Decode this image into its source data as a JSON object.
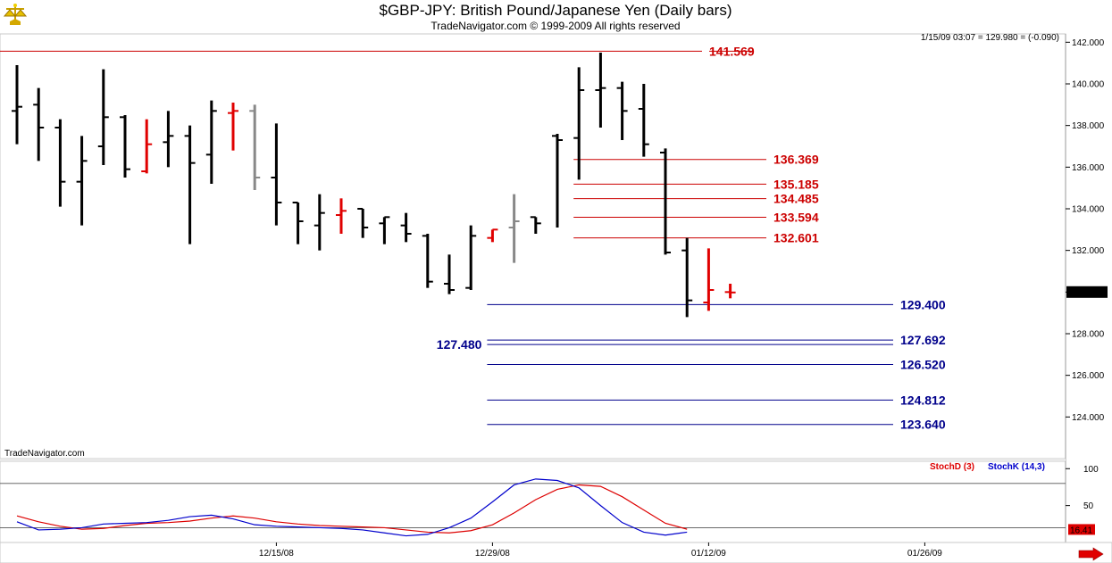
{
  "header": {
    "title": "$GBP-JPY:  British Pound/Japanese Yen  (Daily bars)",
    "subtitle": "TradeNavigator.com © 1999-2009 All rights reserved",
    "readout": "1/15/09 03:07 = 129.980 = (-0.090)",
    "watermark": "TradeNavigator.com",
    "logo_icon": "scales-icon",
    "scroll_icon": "arrow-right-icon"
  },
  "colors": {
    "up_bar": "#000000",
    "down_bar": "#000000",
    "red_bar": "#e00000",
    "gray_bar": "#888888",
    "resistance": "#cc0000",
    "support": "#00008b",
    "stoch_d": "#dd0000",
    "stoch_k": "#0000cc"
  },
  "chart_data": [
    {
      "type": "ohlc",
      "title": "$GBP-JPY:  British Pound/Japanese Yen  (Daily bars)",
      "ylim": [
        122.0,
        142.4
      ],
      "yticks": [
        "142.000",
        "140.000",
        "138.000",
        "136.000",
        "134.000",
        "132.000",
        "130.000",
        "128.000",
        "126.000",
        "124.000"
      ],
      "xticks": [
        {
          "label": "12/15/08",
          "index": 12
        },
        {
          "label": "12/29/08",
          "index": 22
        },
        {
          "label": "01/12/09",
          "index": 32
        },
        {
          "label": "01/26/09",
          "index": 42
        }
      ],
      "current_price": "129.980",
      "bars": [
        {
          "o": 138.7,
          "h": 140.9,
          "l": 137.1,
          "c": 138.9,
          "color": "black"
        },
        {
          "o": 139.0,
          "h": 139.8,
          "l": 136.3,
          "c": 137.9,
          "color": "black"
        },
        {
          "o": 137.9,
          "h": 138.3,
          "l": 134.1,
          "c": 135.3,
          "color": "black"
        },
        {
          "o": 135.3,
          "h": 137.5,
          "l": 133.2,
          "c": 136.3,
          "color": "black"
        },
        {
          "o": 137.0,
          "h": 140.7,
          "l": 136.1,
          "c": 138.4,
          "color": "black"
        },
        {
          "o": 138.4,
          "h": 138.5,
          "l": 135.5,
          "c": 135.9,
          "color": "black"
        },
        {
          "o": 135.8,
          "h": 138.3,
          "l": 135.7,
          "c": 137.1,
          "color": "red"
        },
        {
          "o": 137.2,
          "h": 138.7,
          "l": 136.0,
          "c": 137.5,
          "color": "black"
        },
        {
          "o": 137.5,
          "h": 138.0,
          "l": 132.3,
          "c": 136.2,
          "color": "black"
        },
        {
          "o": 136.6,
          "h": 139.2,
          "l": 135.2,
          "c": 138.7,
          "color": "black"
        },
        {
          "o": 138.6,
          "h": 139.1,
          "l": 136.8,
          "c": 138.7,
          "color": "red"
        },
        {
          "o": 138.7,
          "h": 139.0,
          "l": 134.9,
          "c": 135.5,
          "color": "gray"
        },
        {
          "o": 135.5,
          "h": 138.1,
          "l": 133.2,
          "c": 134.3,
          "color": "black"
        },
        {
          "o": 134.3,
          "h": 134.3,
          "l": 132.3,
          "c": 133.4,
          "color": "black"
        },
        {
          "o": 133.2,
          "h": 134.7,
          "l": 132.0,
          "c": 133.8,
          "color": "black"
        },
        {
          "o": 133.7,
          "h": 134.5,
          "l": 132.8,
          "c": 133.9,
          "color": "red"
        },
        {
          "o": 134.0,
          "h": 134.0,
          "l": 132.6,
          "c": 133.1,
          "color": "black"
        },
        {
          "o": 133.3,
          "h": 133.6,
          "l": 132.3,
          "c": 133.6,
          "color": "black"
        },
        {
          "o": 133.2,
          "h": 133.8,
          "l": 132.4,
          "c": 132.8,
          "color": "black"
        },
        {
          "o": 132.7,
          "h": 132.8,
          "l": 130.2,
          "c": 130.5,
          "color": "black"
        },
        {
          "o": 130.4,
          "h": 131.8,
          "l": 129.9,
          "c": 130.1,
          "color": "black"
        },
        {
          "o": 130.2,
          "h": 133.2,
          "l": 130.1,
          "c": 132.7,
          "color": "black"
        },
        {
          "o": 132.6,
          "h": 133.0,
          "l": 132.4,
          "c": 133.0,
          "color": "red"
        },
        {
          "o": 133.1,
          "h": 134.7,
          "l": 131.4,
          "c": 133.4,
          "color": "gray"
        },
        {
          "o": 133.6,
          "h": 133.6,
          "l": 132.8,
          "c": 133.3,
          "color": "black"
        },
        {
          "o": 137.5,
          "h": 137.6,
          "l": 133.1,
          "c": 137.3,
          "color": "black"
        },
        {
          "o": 137.4,
          "h": 140.8,
          "l": 135.4,
          "c": 139.7,
          "color": "black"
        },
        {
          "o": 139.7,
          "h": 141.5,
          "l": 137.9,
          "c": 139.8,
          "color": "black"
        },
        {
          "o": 139.8,
          "h": 140.1,
          "l": 137.3,
          "c": 138.7,
          "color": "black"
        },
        {
          "o": 138.8,
          "h": 140.0,
          "l": 136.5,
          "c": 137.1,
          "color": "black"
        },
        {
          "o": 136.7,
          "h": 136.9,
          "l": 131.8,
          "c": 131.9,
          "color": "black"
        },
        {
          "o": 132.0,
          "h": 132.6,
          "l": 128.8,
          "c": 129.6,
          "color": "black"
        },
        {
          "o": 129.5,
          "h": 132.1,
          "l": 129.1,
          "c": 130.1,
          "color": "red"
        },
        {
          "o": 130.0,
          "h": 130.4,
          "l": 129.7,
          "c": 129.98,
          "color": "red"
        }
      ],
      "levels": [
        {
          "value": 141.569,
          "label": "141.569",
          "color": "red",
          "x_from": 0,
          "label_side": "right",
          "strike": true
        },
        {
          "value": 136.369,
          "label": "136.369",
          "color": "red",
          "x_from": 26,
          "label_side": "right"
        },
        {
          "value": 135.185,
          "label": "135.185",
          "color": "red",
          "x_from": 26,
          "label_side": "right"
        },
        {
          "value": 134.485,
          "label": "134.485",
          "color": "red",
          "x_from": 26,
          "label_side": "right"
        },
        {
          "value": 133.594,
          "label": "133.594",
          "color": "red",
          "x_from": 26,
          "label_side": "right"
        },
        {
          "value": 132.601,
          "label": "132.601",
          "color": "red",
          "x_from": 26,
          "label_side": "right"
        },
        {
          "value": 129.4,
          "label": "129.400",
          "color": "blue",
          "x_from": 22,
          "label_side": "right",
          "long": true
        },
        {
          "value": 127.692,
          "label": "127.692",
          "color": "blue",
          "x_from": 22,
          "label_side": "right"
        },
        {
          "value": 127.48,
          "label": "127.480",
          "color": "blue",
          "x_from": 22,
          "label_side": "left"
        },
        {
          "value": 126.52,
          "label": "126.520",
          "color": "blue",
          "x_from": 22,
          "label_side": "right"
        },
        {
          "value": 124.812,
          "label": "124.812",
          "color": "blue",
          "x_from": 22,
          "label_side": "right"
        },
        {
          "value": 123.64,
          "label": "123.640",
          "color": "blue",
          "x_from": 22,
          "label_side": "right"
        }
      ]
    },
    {
      "type": "line",
      "ylim": [
        0,
        110
      ],
      "yticks": [
        "100",
        "50"
      ],
      "reference_lines": [
        80,
        20
      ],
      "legend": [
        "StochD (3)",
        "StochK (14,3)"
      ],
      "legend_position": "top-right",
      "current_value": "16.41",
      "series": [
        {
          "name": "StochD (3)",
          "color": "red",
          "values": [
            36,
            28,
            22,
            18,
            19,
            23,
            26,
            27,
            29,
            33,
            36,
            33,
            28,
            25,
            23,
            22,
            21,
            20,
            17,
            14,
            13,
            16,
            24,
            40,
            58,
            72,
            78,
            76,
            62,
            44,
            26,
            18
          ]
        },
        {
          "name": "StochK (14,3)",
          "color": "blue",
          "values": [
            28,
            17,
            18,
            20,
            25,
            26,
            27,
            30,
            35,
            37,
            32,
            24,
            22,
            21,
            20,
            19,
            17,
            13,
            9,
            11,
            20,
            33,
            55,
            78,
            86,
            84,
            74,
            50,
            27,
            14,
            10,
            14
          ]
        }
      ]
    }
  ]
}
